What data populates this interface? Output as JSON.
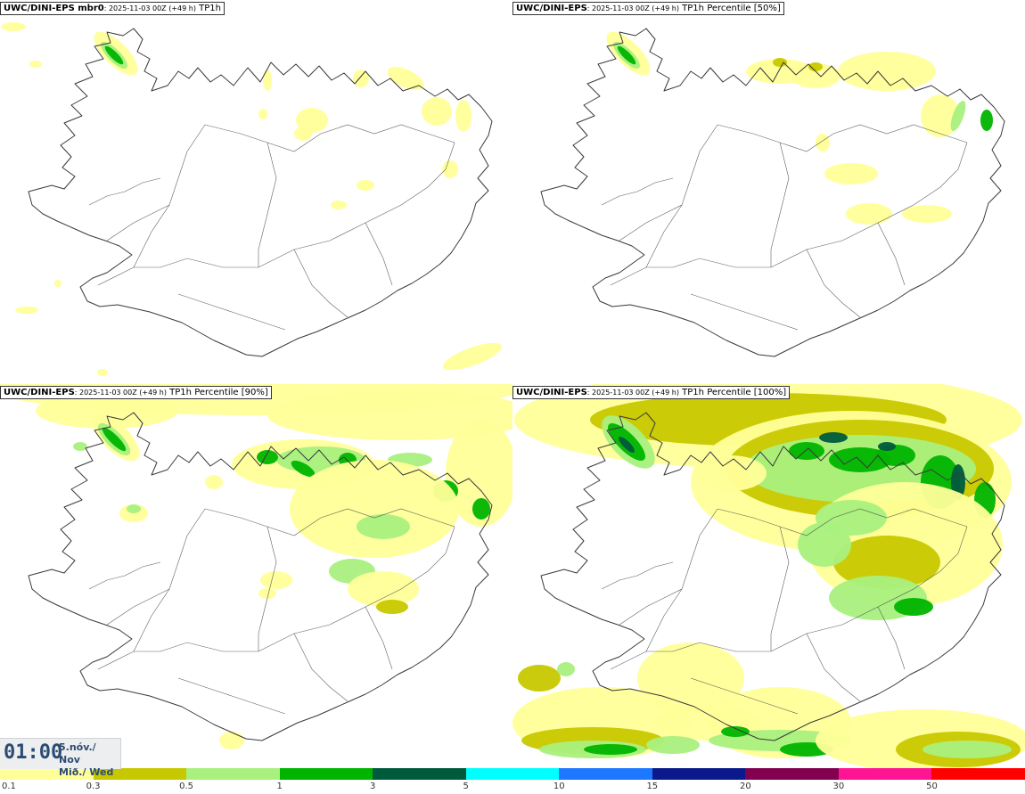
{
  "panels": [
    {
      "model": "UWC/DINI-EPS mbr0",
      "meta": ": 2025-11-03 00Z (+49 h)",
      "field": "TP1h"
    },
    {
      "model": "UWC/DINI-EPS",
      "meta": ": 2025-11-03 00Z (+49 h)",
      "field": "TP1h Percentile [50%]"
    },
    {
      "model": "UWC/DINI-EPS",
      "meta": ": 2025-11-03 00Z (+49 h)",
      "field": "TP1h Percentile [90%]"
    },
    {
      "model": "UWC/DINI-EPS",
      "meta": ": 2025-11-03 00Z (+49 h)",
      "field": "TP1h Percentile [100%]"
    }
  ],
  "clock": {
    "time": "01:00",
    "date_line1": "5.nóv./ Nov",
    "date_line2": "Mið./ Wed"
  },
  "legend": {
    "ticks": [
      "0.1",
      "0.3",
      "0.5",
      "1",
      "3",
      "5",
      "10",
      "15",
      "20",
      "30",
      "50"
    ],
    "colors": [
      "#ffff99",
      "#c8c800",
      "#a9f07f",
      "#00b400",
      "#005a3c",
      "#00ffff",
      "#1e78ff",
      "#0a1a8c",
      "#820050",
      "#ff1493",
      "#ff0000"
    ]
  },
  "map_colors": {
    "coast": "#3a3a3a",
    "light_yellow": "#ffff99",
    "olive": "#c8c800",
    "light_green": "#a9f07f",
    "green": "#00b400",
    "dark_green": "#005a3c"
  },
  "precip_max_level_by_panel": [
    3,
    3,
    3,
    4
  ]
}
